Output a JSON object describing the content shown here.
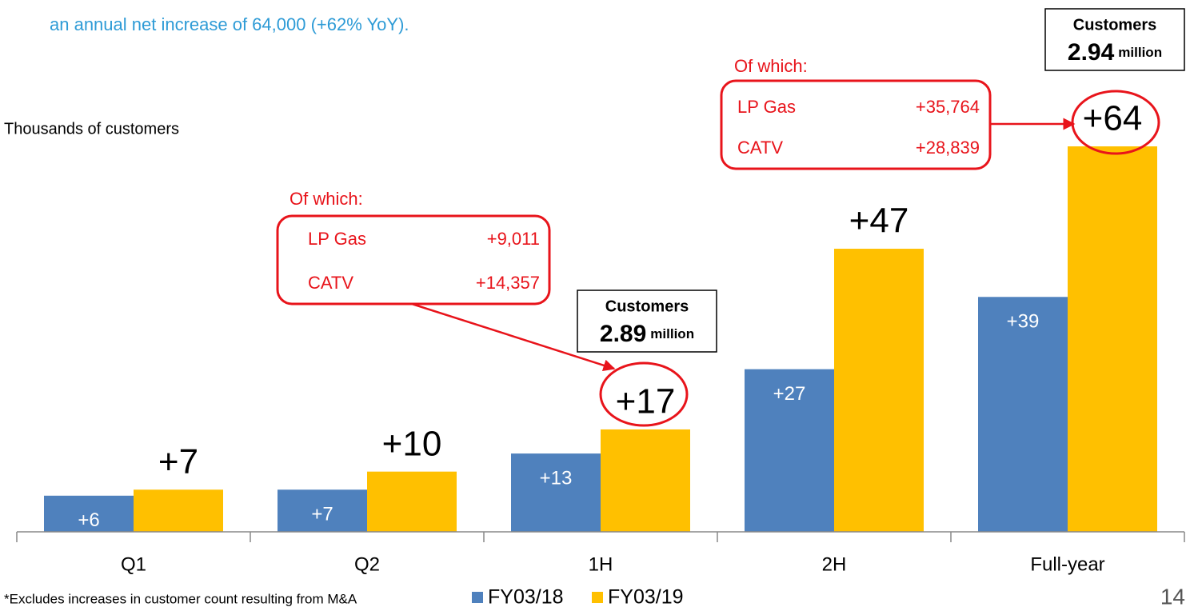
{
  "chart_data": {
    "type": "bar",
    "subtitle": "an annual net increase of 64,000 (+62% YoY).",
    "y_label": "Thousands of customers",
    "categories": [
      "Q1",
      "Q2",
      "1H",
      "2H",
      "Full-year"
    ],
    "series": [
      {
        "name": "FY03/18",
        "color": "#4f81bd",
        "values": [
          6,
          7,
          13,
          27,
          39
        ],
        "value_labels": [
          "+6",
          "+7",
          "+13",
          "+27",
          "+39"
        ]
      },
      {
        "name": "FY03/19",
        "color": "#ffc000",
        "values": [
          7,
          10,
          17,
          47,
          64
        ],
        "value_labels": [
          "+7",
          "+10",
          "+17",
          "+47",
          "+64"
        ]
      }
    ],
    "annotations": [
      {
        "title": "Of which:",
        "rows": [
          [
            "LP Gas",
            "+9,011"
          ],
          [
            "CATV",
            "+14,357"
          ]
        ]
      },
      {
        "title": "Of which:",
        "rows": [
          [
            "LP Gas",
            "+35,764"
          ],
          [
            "CATV",
            "+28,839"
          ]
        ]
      }
    ],
    "customer_boxes": [
      {
        "label": "Customers",
        "value": "2.89",
        "unit": "million"
      },
      {
        "label": "Customers",
        "value": "2.94",
        "unit": "million"
      }
    ],
    "footnote": "*Excludes increases in customer count resulting from M&A",
    "page_number": "14"
  }
}
